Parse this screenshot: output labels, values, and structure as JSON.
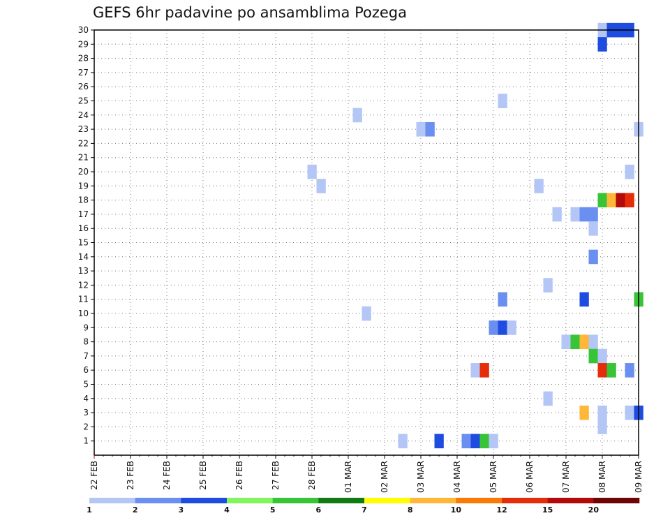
{
  "chart_data": {
    "type": "heatmap",
    "title": "GEFS 6hr padavine po ansamblima Pozega",
    "x_tick_labels": [
      "22 FEB",
      "23 FEB",
      "24 FEB",
      "25 FEB",
      "26 FEB",
      "27 FEB",
      "28 FEB",
      "01 MAR",
      "02 MAR",
      "03 MAR",
      "04 MAR",
      "05 MAR",
      "06 MAR",
      "07 MAR",
      "08 MAR",
      "09 MAR"
    ],
    "y_tick_labels": [
      "1",
      "2",
      "3",
      "4",
      "5",
      "6",
      "7",
      "8",
      "9",
      "10",
      "11",
      "12",
      "13",
      "14",
      "15",
      "16",
      "17",
      "18",
      "19",
      "20",
      "21",
      "22",
      "23",
      "24",
      "25",
      "26",
      "27",
      "28",
      "29",
      "30"
    ],
    "ylim": [
      0,
      30
    ],
    "grid": true,
    "legend": {
      "placement": "bottom",
      "labels": [
        "1",
        "2",
        "3",
        "4",
        "5",
        "6",
        "7",
        "8",
        "10",
        "12",
        "15",
        "20"
      ],
      "colors": [
        "#b3c6f5",
        "#6b8ff0",
        "#1f4ce0",
        "#82f55c",
        "#37c437",
        "#127a12",
        "#ffff00",
        "#ffb738",
        "#fa7a08",
        "#e62d0a",
        "#b30a0a",
        "#6e0505"
      ]
    },
    "cells": [
      {
        "day": 14.0,
        "member": 30,
        "mm": 1
      },
      {
        "day": 14.25,
        "member": 30,
        "mm": 3
      },
      {
        "day": 14.5,
        "member": 30,
        "mm": 3
      },
      {
        "day": 14.75,
        "member": 30,
        "mm": 3
      },
      {
        "day": 14.0,
        "member": 29,
        "mm": 3
      },
      {
        "day": 11.25,
        "member": 25,
        "mm": 1
      },
      {
        "day": 7.25,
        "member": 24,
        "mm": 1
      },
      {
        "day": 9.0,
        "member": 23,
        "mm": 1
      },
      {
        "day": 9.25,
        "member": 23,
        "mm": 2
      },
      {
        "day": 15.0,
        "member": 23,
        "mm": 1
      },
      {
        "day": 6.0,
        "member": 20,
        "mm": 1
      },
      {
        "day": 14.75,
        "member": 20,
        "mm": 1
      },
      {
        "day": 6.25,
        "member": 19,
        "mm": 1
      },
      {
        "day": 12.25,
        "member": 19,
        "mm": 1
      },
      {
        "day": 14.0,
        "member": 18,
        "mm": 5
      },
      {
        "day": 14.25,
        "member": 18,
        "mm": 9
      },
      {
        "day": 14.5,
        "member": 18,
        "mm": 15
      },
      {
        "day": 14.75,
        "member": 18,
        "mm": 12
      },
      {
        "day": 12.75,
        "member": 17,
        "mm": 1
      },
      {
        "day": 13.25,
        "member": 17,
        "mm": 1
      },
      {
        "day": 13.5,
        "member": 17,
        "mm": 2
      },
      {
        "day": 13.75,
        "member": 17,
        "mm": 2
      },
      {
        "day": 13.75,
        "member": 16,
        "mm": 1
      },
      {
        "day": 13.75,
        "member": 14,
        "mm": 2
      },
      {
        "day": 12.5,
        "member": 12,
        "mm": 1
      },
      {
        "day": 11.25,
        "member": 11,
        "mm": 2
      },
      {
        "day": 13.5,
        "member": 11,
        "mm": 3
      },
      {
        "day": 15.0,
        "member": 11,
        "mm": 5
      },
      {
        "day": 7.5,
        "member": 10,
        "mm": 1
      },
      {
        "day": 11.0,
        "member": 9,
        "mm": 2
      },
      {
        "day": 11.25,
        "member": 9,
        "mm": 3
      },
      {
        "day": 11.5,
        "member": 9,
        "mm": 1
      },
      {
        "day": 13.0,
        "member": 8,
        "mm": 1
      },
      {
        "day": 13.25,
        "member": 8,
        "mm": 5
      },
      {
        "day": 13.5,
        "member": 8,
        "mm": 9
      },
      {
        "day": 13.75,
        "member": 8,
        "mm": 1
      },
      {
        "day": 13.75,
        "member": 7,
        "mm": 5
      },
      {
        "day": 14.0,
        "member": 7,
        "mm": 1
      },
      {
        "day": 10.5,
        "member": 6,
        "mm": 1
      },
      {
        "day": 10.75,
        "member": 6,
        "mm": 12
      },
      {
        "day": 14.0,
        "member": 6,
        "mm": 12
      },
      {
        "day": 14.25,
        "member": 6,
        "mm": 5
      },
      {
        "day": 14.75,
        "member": 6,
        "mm": 2
      },
      {
        "day": 12.5,
        "member": 4,
        "mm": 1
      },
      {
        "day": 13.5,
        "member": 3,
        "mm": 9
      },
      {
        "day": 14.0,
        "member": 3,
        "mm": 1
      },
      {
        "day": 14.75,
        "member": 3,
        "mm": 1
      },
      {
        "day": 15.0,
        "member": 3,
        "mm": 3
      },
      {
        "day": 14.0,
        "member": 2,
        "mm": 1
      },
      {
        "day": 8.5,
        "member": 1,
        "mm": 1
      },
      {
        "day": 9.5,
        "member": 1,
        "mm": 3
      },
      {
        "day": 10.25,
        "member": 1,
        "mm": 2
      },
      {
        "day": 10.5,
        "member": 1,
        "mm": 3
      },
      {
        "day": 10.75,
        "member": 1,
        "mm": 5
      },
      {
        "day": 11.0,
        "member": 1,
        "mm": 1
      }
    ]
  }
}
